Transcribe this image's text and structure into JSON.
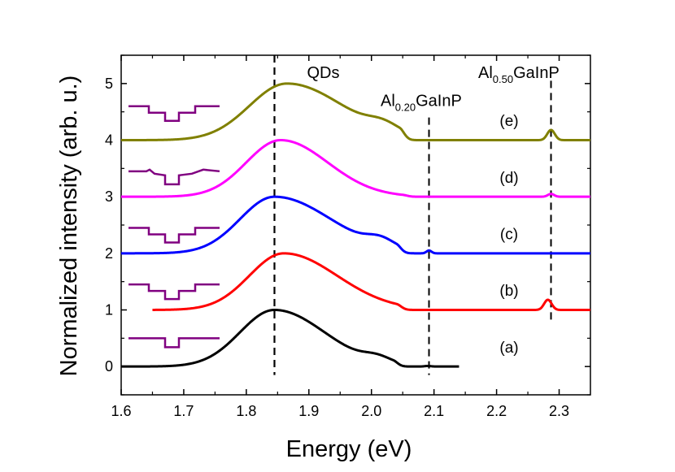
{
  "chart_data": {
    "type": "line",
    "title": "",
    "xlabel": "Energy (eV)",
    "ylabel": "Normalized intensity (arb. u.)",
    "xlim": [
      1.6,
      2.35
    ],
    "ylim": [
      -0.5,
      5.5
    ],
    "xticks": [
      "1.6",
      "1.7",
      "1.8",
      "1.9",
      "2.0",
      "2.1",
      "2.2",
      "2.3"
    ],
    "yticks": [
      "0",
      "1",
      "2",
      "3",
      "4",
      "5"
    ],
    "grid": false,
    "vlines": [
      {
        "x": 1.845,
        "label": "QDs",
        "style": "dashed"
      },
      {
        "x": 2.092,
        "label": "Al0.20GaInP",
        "label_base": "Al",
        "label_sub": "0.20",
        "label_rest": "GaInP",
        "style": "dashed"
      },
      {
        "x": 2.287,
        "label": "Al0.50GaInP",
        "label_base": "Al",
        "label_sub": "0.50",
        "label_rest": "GaInP",
        "style": "dashed"
      }
    ],
    "series": [
      {
        "name": "(a)",
        "color": "#000000",
        "offset": 0,
        "x_range": [
          1.6,
          2.14
        ],
        "qd": {
          "center": 1.845,
          "sigma_left": 0.055,
          "sigma_right": 0.08,
          "amp": 1.0
        },
        "shoulders": [
          {
            "center": 2.01,
            "sigma": 0.022,
            "amp": 0.1
          }
        ],
        "peaks": [
          {
            "center": 2.09,
            "sigma": 0.005,
            "amp": 0.01
          }
        ],
        "cutoff": 2.035
      },
      {
        "name": "(b)",
        "color": "#ff0000",
        "offset": 1,
        "x_range": [
          1.65,
          2.35
        ],
        "qd": {
          "center": 1.86,
          "sigma_left": 0.055,
          "sigma_right": 0.085,
          "amp": 1.0
        },
        "shoulders": [],
        "peaks": [
          {
            "center": 2.282,
            "sigma": 0.006,
            "amp": 0.18
          }
        ],
        "cutoff": 2.04
      },
      {
        "name": "(c)",
        "color": "#0000ff",
        "offset": 2,
        "x_range": [
          1.6,
          2.35
        ],
        "qd": {
          "center": 1.845,
          "sigma_left": 0.055,
          "sigma_right": 0.09,
          "amp": 1.0
        },
        "shoulders": [
          {
            "center": 2.015,
            "sigma": 0.022,
            "amp": 0.14
          }
        ],
        "peaks": [
          {
            "center": 2.092,
            "sigma": 0.004,
            "amp": 0.05
          }
        ],
        "cutoff": 2.04
      },
      {
        "name": "(d)",
        "color": "#ff00ff",
        "offset": 3,
        "x_range": [
          1.6,
          2.35
        ],
        "qd": {
          "center": 1.855,
          "sigma_left": 0.055,
          "sigma_right": 0.075,
          "amp": 1.0
        },
        "shoulders": [],
        "peaks": [
          {
            "center": 2.287,
            "sigma": 0.005,
            "amp": 0.05
          }
        ],
        "cutoff": 2.05
      },
      {
        "name": "(e)",
        "color": "#808000",
        "offset": 4,
        "x_range": [
          1.6,
          2.35
        ],
        "qd": {
          "center": 1.865,
          "sigma_left": 0.06,
          "sigma_right": 0.09,
          "amp": 1.0
        },
        "shoulders": [
          {
            "center": 2.02,
            "sigma": 0.025,
            "amp": 0.14
          }
        ],
        "peaks": [
          {
            "center": 2.287,
            "sigma": 0.006,
            "amp": 0.18
          }
        ],
        "cutoff": 2.045
      }
    ],
    "inset_icons": {
      "color": "#800080",
      "count": 5
    }
  }
}
